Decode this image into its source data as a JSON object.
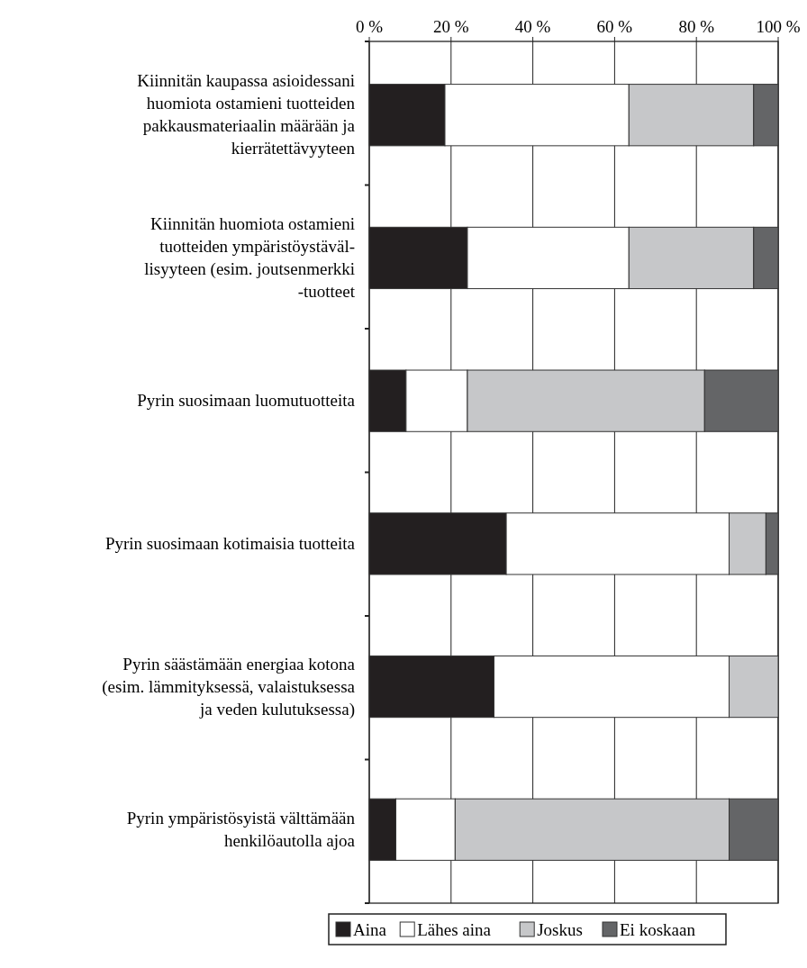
{
  "chart_data": {
    "type": "bar",
    "orientation": "horizontal",
    "stacked": true,
    "categories": [
      "Kiinnitän kaupassa asioidessani\nhuomiota ostamieni tuotteiden\npakkausmateriaalin määrään ja\nkierrätettävyyteen",
      "Kiinnitän huomiota ostamieni\ntuotteiden ympäristöystäväl-\nlisyyteen (esim. joutsenmerkki\n-tuotteet",
      "Pyrin suosimaan luomutuotteita",
      "Pyrin suosimaan kotimaisia tuotteita",
      "Pyrin säästämään energiaa kotona\n(esim. lämmityksessä, valaistuksessa\nja veden kulutuksessa)",
      "Pyrin ympäristösyistä välttämään\nhenkilöautolla ajoa"
    ],
    "series": [
      {
        "name": "Aina",
        "color": "#231f20",
        "values": [
          18.5,
          24,
          9,
          33.5,
          30.5,
          6.5
        ]
      },
      {
        "name": "Lähes aina",
        "color": "#ffffff",
        "values": [
          45,
          39.5,
          15,
          54.5,
          57.5,
          14.5
        ]
      },
      {
        "name": "Joskus",
        "color": "#c6c7c9",
        "values": [
          30.5,
          30.5,
          58,
          9,
          12,
          67
        ]
      },
      {
        "name": "Ei koskaan",
        "color": "#646567",
        "values": [
          6,
          6,
          18,
          3,
          null,
          12
        ]
      }
    ],
    "xlim": [
      0,
      100
    ],
    "xticks": [
      {
        "value": 0,
        "label": "0 %"
      },
      {
        "value": 20,
        "label": "20 %"
      },
      {
        "value": 40,
        "label": "40 %"
      },
      {
        "value": 60,
        "label": "60 %"
      },
      {
        "value": 80,
        "label": "80 %"
      },
      {
        "value": 100,
        "label": "100 %"
      }
    ],
    "grid": "x",
    "legend": "bottom"
  }
}
